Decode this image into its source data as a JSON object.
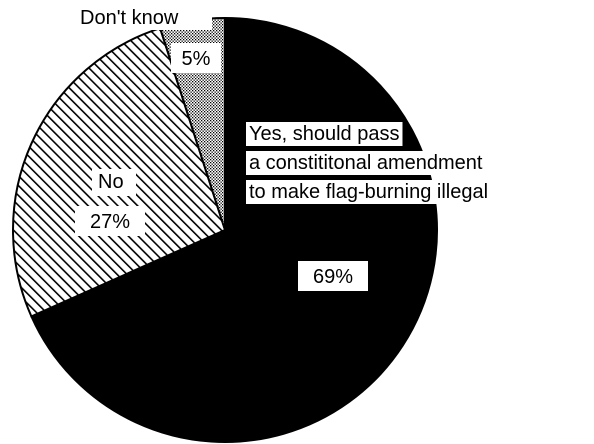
{
  "chart_data": {
    "type": "pie",
    "title": "",
    "categories": [
      "Yes, should pass a constititonal amendment to make flag-burning illegal",
      "No",
      "Don't know"
    ],
    "values": [
      69,
      27,
      5
    ],
    "unit": "%",
    "slices": [
      {
        "label_lines": [
          "Yes, should pass",
          "a constititonal amendment",
          "to make flag-burning illegal"
        ],
        "value": 69,
        "value_label": "69%",
        "fill": "solid-black"
      },
      {
        "label_lines": [
          "No"
        ],
        "value": 27,
        "value_label": "27%",
        "fill": "diagonal-hatch"
      },
      {
        "label_lines": [
          "Don't know"
        ],
        "value": 5,
        "value_label": "5%",
        "fill": "dot-stipple"
      }
    ],
    "colors": {
      "ink": "#000000",
      "paper": "#ffffff",
      "stipple": "#c8c8c8"
    },
    "legend": "none"
  }
}
